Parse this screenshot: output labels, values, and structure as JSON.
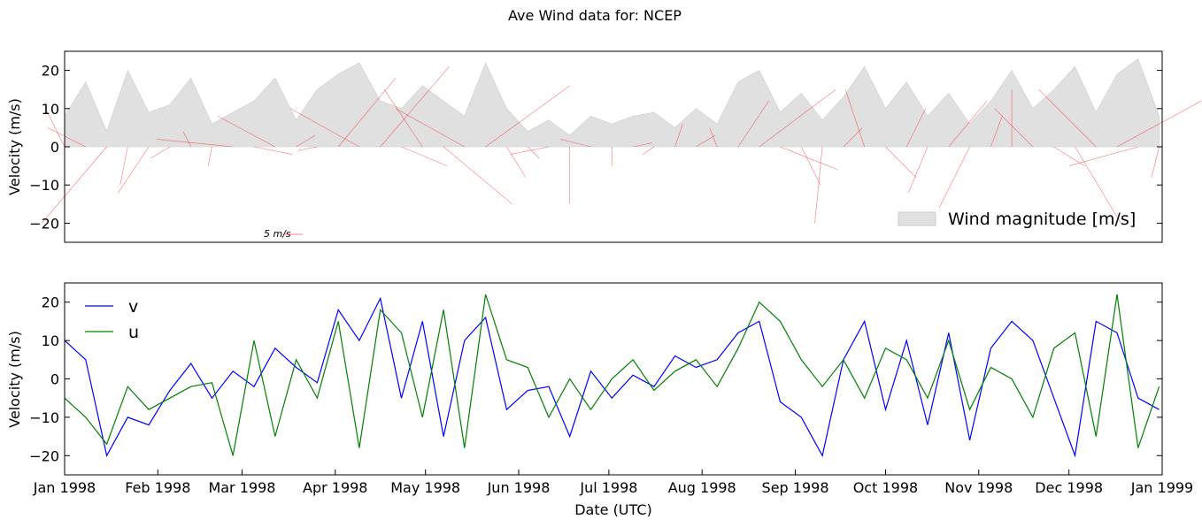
{
  "figure": {
    "title": "Ave Wind data for:   NCEP"
  },
  "colors": {
    "v": "#0000ff",
    "u": "#008000",
    "magnitude_fill": "#e0e0e0",
    "sticks": "#ff0000",
    "axes": "#000000"
  },
  "chart_data": [
    {
      "id": "top",
      "type": "area",
      "ylabel": "Velocity (m/s)",
      "ylim": [
        -25,
        25
      ],
      "yticks": [
        "−20",
        "−10",
        "0",
        "10",
        "20"
      ],
      "ytick_values": [
        -20,
        -10,
        0,
        10,
        20
      ],
      "legend": {
        "label": "Wind magnitude [m/s]",
        "position": "lower-right"
      },
      "quiver_key_label": "5 m/s",
      "series": [
        {
          "name": "Wind magnitude [m/s]",
          "kind": "area",
          "color": "#e0e0e0",
          "x": [
            "1998-01-01",
            "1998-01-08",
            "1998-01-15",
            "1998-01-22",
            "1998-01-29",
            "1998-02-05",
            "1998-02-12",
            "1998-02-19",
            "1998-02-26",
            "1998-03-05",
            "1998-03-12",
            "1998-03-19",
            "1998-03-26",
            "1998-04-02",
            "1998-04-09",
            "1998-04-16",
            "1998-04-23",
            "1998-04-30",
            "1998-05-07",
            "1998-05-14",
            "1998-05-21",
            "1998-05-28",
            "1998-06-04",
            "1998-06-11",
            "1998-06-18",
            "1998-06-25",
            "1998-07-02",
            "1998-07-09",
            "1998-07-16",
            "1998-07-23",
            "1998-07-30",
            "1998-08-06",
            "1998-08-13",
            "1998-08-20",
            "1998-08-27",
            "1998-09-03",
            "1998-09-10",
            "1998-09-17",
            "1998-09-24",
            "1998-10-01",
            "1998-10-08",
            "1998-10-15",
            "1998-10-22",
            "1998-10-29",
            "1998-11-05",
            "1998-11-12",
            "1998-11-19",
            "1998-11-26",
            "1998-12-03",
            "1998-12-10",
            "1998-12-17",
            "1998-12-24",
            "1998-12-31"
          ],
          "values": [
            8,
            17,
            4,
            20,
            9,
            11,
            18,
            6,
            9,
            12,
            18,
            7,
            15,
            19,
            22,
            12,
            10,
            16,
            12,
            8,
            22,
            10,
            4,
            7,
            3,
            8,
            6,
            8,
            9,
            5,
            10,
            6,
            17,
            20,
            9,
            14,
            7,
            13,
            21,
            10,
            17,
            8,
            14,
            6,
            12,
            20,
            10,
            15,
            21,
            9,
            19,
            23,
            8
          ]
        }
      ]
    },
    {
      "id": "bottom",
      "type": "line",
      "xlabel": "Date (UTC)",
      "ylabel": "Velocity (m/s)",
      "ylim": [
        -25,
        25
      ],
      "xlim": [
        "1998-01-01",
        "1999-01-01"
      ],
      "yticks": [
        "−20",
        "−10",
        "0",
        "10",
        "20"
      ],
      "ytick_values": [
        -20,
        -10,
        0,
        10,
        20
      ],
      "xticks": [
        "Jan 1998",
        "Feb 1998",
        "Mar 1998",
        "Apr 1998",
        "May 1998",
        "Jun 1998",
        "Jul 1998",
        "Aug 1998",
        "Sep 1998",
        "Oct 1998",
        "Nov 1998",
        "Dec 1998",
        "Jan 1999"
      ],
      "xtick_values": [
        "1998-01-01",
        "1998-02-01",
        "1998-03-01",
        "1998-04-01",
        "1998-05-01",
        "1998-06-01",
        "1998-07-01",
        "1998-08-01",
        "1998-09-01",
        "1998-10-01",
        "1998-11-01",
        "1998-12-01",
        "1999-01-01"
      ],
      "legend": {
        "position": "top-left"
      },
      "series": [
        {
          "name": "v",
          "color": "#0000ff",
          "x": [
            "1998-01-01",
            "1998-01-08",
            "1998-01-15",
            "1998-01-22",
            "1998-01-29",
            "1998-02-05",
            "1998-02-12",
            "1998-02-19",
            "1998-02-26",
            "1998-03-05",
            "1998-03-12",
            "1998-03-19",
            "1998-03-26",
            "1998-04-02",
            "1998-04-09",
            "1998-04-16",
            "1998-04-23",
            "1998-04-30",
            "1998-05-07",
            "1998-05-14",
            "1998-05-21",
            "1998-05-28",
            "1998-06-04",
            "1998-06-11",
            "1998-06-18",
            "1998-06-25",
            "1998-07-02",
            "1998-07-09",
            "1998-07-16",
            "1998-07-23",
            "1998-07-30",
            "1998-08-06",
            "1998-08-13",
            "1998-08-20",
            "1998-08-27",
            "1998-09-03",
            "1998-09-10",
            "1998-09-17",
            "1998-09-24",
            "1998-10-01",
            "1998-10-08",
            "1998-10-15",
            "1998-10-22",
            "1998-10-29",
            "1998-11-05",
            "1998-11-12",
            "1998-11-19",
            "1998-11-26",
            "1998-12-03",
            "1998-12-10",
            "1998-12-17",
            "1998-12-24",
            "1998-12-31"
          ],
          "values": [
            10,
            5,
            -20,
            -10,
            -12,
            -3,
            4,
            -5,
            2,
            -2,
            8,
            3,
            -1,
            18,
            10,
            21,
            -5,
            15,
            -15,
            10,
            16,
            -8,
            -3,
            -2,
            -15,
            2,
            -5,
            1,
            -2,
            6,
            3,
            5,
            12,
            15,
            -6,
            -10,
            -20,
            5,
            15,
            -8,
            10,
            -12,
            12,
            -16,
            8,
            15,
            10,
            -5,
            -20,
            15,
            12,
            -5,
            -8
          ]
        },
        {
          "name": "u",
          "color": "#008000",
          "x": [
            "1998-01-01",
            "1998-01-08",
            "1998-01-15",
            "1998-01-22",
            "1998-01-29",
            "1998-02-05",
            "1998-02-12",
            "1998-02-19",
            "1998-02-26",
            "1998-03-05",
            "1998-03-12",
            "1998-03-19",
            "1998-03-26",
            "1998-04-02",
            "1998-04-09",
            "1998-04-16",
            "1998-04-23",
            "1998-04-30",
            "1998-05-07",
            "1998-05-14",
            "1998-05-21",
            "1998-05-28",
            "1998-06-04",
            "1998-06-11",
            "1998-06-18",
            "1998-06-25",
            "1998-07-02",
            "1998-07-09",
            "1998-07-16",
            "1998-07-23",
            "1998-07-30",
            "1998-08-06",
            "1998-08-13",
            "1998-08-20",
            "1998-08-27",
            "1998-09-03",
            "1998-09-10",
            "1998-09-17",
            "1998-09-24",
            "1998-10-01",
            "1998-10-08",
            "1998-10-15",
            "1998-10-22",
            "1998-10-29",
            "1998-11-05",
            "1998-11-12",
            "1998-11-19",
            "1998-11-26",
            "1998-12-03",
            "1998-12-10",
            "1998-12-17",
            "1998-12-24",
            "1998-12-31"
          ],
          "values": [
            -5,
            -10,
            -17,
            -2,
            -8,
            -5,
            -2,
            -1,
            -20,
            10,
            -15,
            5,
            -5,
            15,
            -18,
            18,
            12,
            -10,
            18,
            -18,
            22,
            5,
            3,
            -10,
            0,
            -8,
            0,
            5,
            -3,
            2,
            5,
            -2,
            8,
            20,
            15,
            5,
            -2,
            5,
            -5,
            8,
            5,
            -5,
            10,
            -8,
            3,
            0,
            -10,
            8,
            12,
            -15,
            22,
            -18,
            -2
          ]
        }
      ]
    }
  ]
}
